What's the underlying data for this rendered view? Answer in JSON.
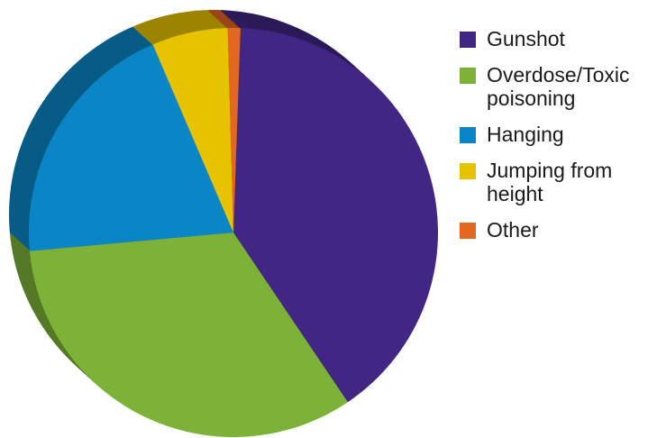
{
  "chart_data": {
    "type": "pie",
    "style": "3d",
    "unit": "%",
    "slices": [
      {
        "label": "Gunshot",
        "value": 40,
        "color": "#412683"
      },
      {
        "label": "Overdose/Toxic poisoning",
        "value": 33,
        "color": "#7db238"
      },
      {
        "label": "Hanging",
        "value": 20,
        "color": "#0a86c7"
      },
      {
        "label": "Jumping from height",
        "value": 6,
        "color": "#e6c200"
      },
      {
        "label": "Other",
        "value": 1,
        "color": "#e2671f"
      }
    ],
    "legend_position": "right"
  }
}
